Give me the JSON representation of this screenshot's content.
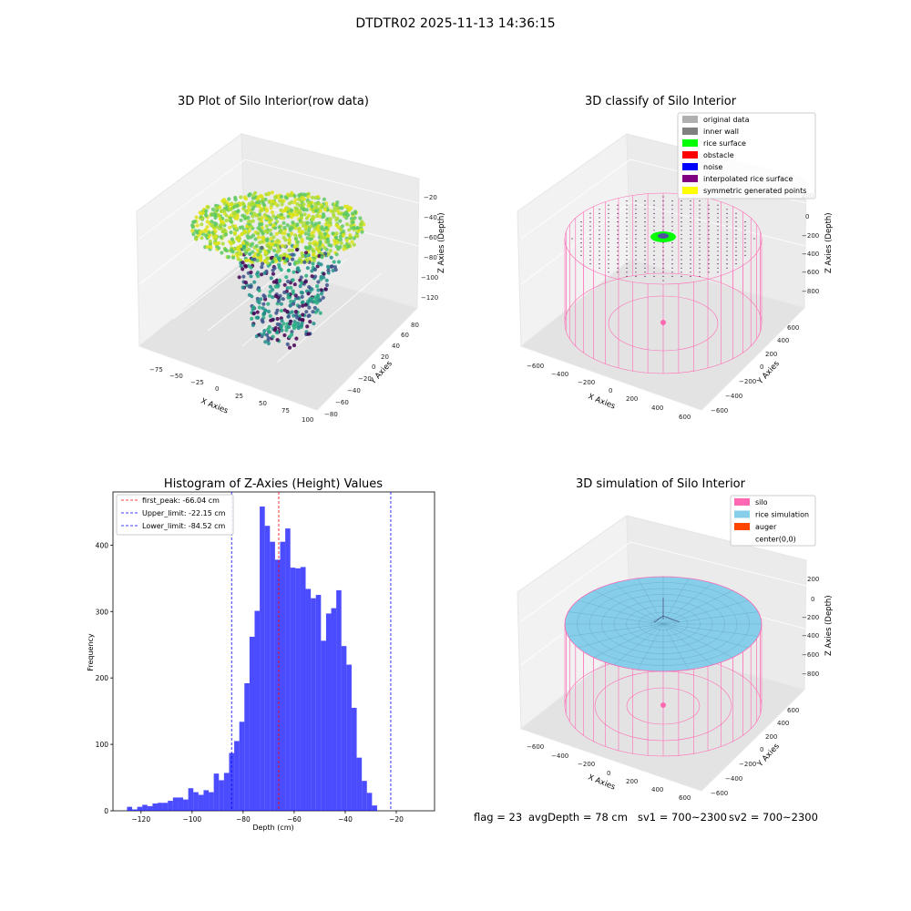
{
  "figure": {
    "suptitle": "DTDTR02 2025-11-13 14:36:15"
  },
  "colors": {
    "silo": "#ff69b4",
    "rice": "#87ceeb",
    "auger": "#ff4500",
    "hist": "#0000ff",
    "peak": "#ff0000",
    "limit": "#0000ff",
    "original": "#b0b0b0",
    "inner_wall": "#808080",
    "rice_surface": "#00ff00",
    "obstacle": "#ff0000",
    "noise": "#0000ff",
    "interp": "#800080",
    "symmetric": "#ffff00"
  },
  "chart_data": [
    {
      "type": "scatter",
      "title": "3D Plot of Silo Interior(row data)",
      "xlabel": "X Axies",
      "ylabel": "Y Axies",
      "zlabel": "Z Axies (Depth)",
      "x_ticks": [
        "−75",
        "−50",
        "−25",
        "0",
        "25",
        "50",
        "75",
        "100"
      ],
      "y_ticks": [
        "−80",
        "−60",
        "−40",
        "−20",
        "0",
        "20",
        "40",
        "60",
        "80"
      ],
      "z_ticks": [
        "−20",
        "−40",
        "−60",
        "−80",
        "−100",
        "−120"
      ],
      "xlim": [
        -90,
        100
      ],
      "ylim": [
        -85,
        85
      ],
      "zlim": [
        -130,
        -15
      ],
      "colormap": "viridis"
    },
    {
      "type": "scatter",
      "title": "3D classify of Silo Interior",
      "xlabel": "X Axies",
      "ylabel": "Y Axies",
      "zlabel": "Z Axies (Depth)",
      "x_ticks": [
        "−600",
        "−400",
        "−200",
        "0",
        "200",
        "400",
        "600"
      ],
      "y_ticks": [
        "−600",
        "−400",
        "−200",
        "0",
        "200",
        "400",
        "600"
      ],
      "z_ticks": [
        "200",
        "0",
        "−200",
        "−400",
        "−600",
        "−800"
      ],
      "legend_position": "top-right",
      "legend": [
        {
          "name": "original data",
          "color": "#b0b0b0"
        },
        {
          "name": "inner wall",
          "color": "#808080"
        },
        {
          "name": "rice surface",
          "color": "#00ff00"
        },
        {
          "name": "obstacle",
          "color": "#ff0000"
        },
        {
          "name": "noise",
          "color": "#0000ff"
        },
        {
          "name": "interpolated rice surface",
          "color": "#800080"
        },
        {
          "name": "symmetric generated points",
          "color": "#ffff00"
        }
      ]
    },
    {
      "type": "bar",
      "title": "Histogram of Z-Axies (Height) Values",
      "xlabel": "Depth (cm)",
      "ylabel": "Frequency",
      "xlim": [
        -131,
        -5
      ],
      "ylim": [
        0,
        480
      ],
      "x_ticks": [
        -120,
        -100,
        -80,
        -60,
        -40,
        -20
      ],
      "y_ticks": [
        0,
        100,
        200,
        300,
        400
      ],
      "bin_start": -125.5,
      "bin_width": 2.0,
      "values": [
        6,
        2,
        6,
        9,
        7,
        11,
        12,
        12,
        15,
        20,
        20,
        17,
        34,
        28,
        24,
        31,
        28,
        56,
        46,
        57,
        87,
        105,
        134,
        192,
        262,
        301,
        458,
        429,
        405,
        378,
        405,
        425,
        366,
        365,
        367,
        334,
        320,
        325,
        256,
        297,
        305,
        332,
        248,
        220,
        155,
        80,
        45,
        27,
        8
      ],
      "lines": [
        {
          "label": "first_peak: -66.04 cm",
          "x": -66.04,
          "color": "#ff0000"
        },
        {
          "label": "Upper_limit: -22.15 cm",
          "x": -22.15,
          "color": "#0000ff"
        },
        {
          "label": "Lower_limit: -84.52 cm",
          "x": -84.52,
          "color": "#0000ff"
        }
      ],
      "legend_position": "top-left"
    },
    {
      "type": "scatter",
      "title": "3D simulation of Silo Interior",
      "xlabel": "X Axies",
      "ylabel": "Y Axies",
      "zlabel": "Z Axies (Depth)",
      "x_ticks": [
        "−600",
        "−400",
        "−200",
        "0",
        "200",
        "400",
        "600"
      ],
      "y_ticks": [
        "−600",
        "−400",
        "−200",
        "0",
        "200",
        "400",
        "600"
      ],
      "z_ticks": [
        "200",
        "0",
        "−200",
        "−400",
        "−600",
        "−800"
      ],
      "legend_position": "top-right",
      "legend": [
        {
          "name": "silo",
          "color": "#ff69b4"
        },
        {
          "name": "rice simulation",
          "color": "#87ceeb"
        },
        {
          "name": "auger",
          "color": "#ff4500"
        },
        {
          "name": "center(0,0)",
          "color": "#ffffff"
        }
      ]
    }
  ],
  "footer": {
    "flag": "flag = 23",
    "avg_depth": "avgDepth = 78 cm",
    "sv1": "sv1 = 700~2300",
    "sv2": "sv2 = 700~2300"
  }
}
